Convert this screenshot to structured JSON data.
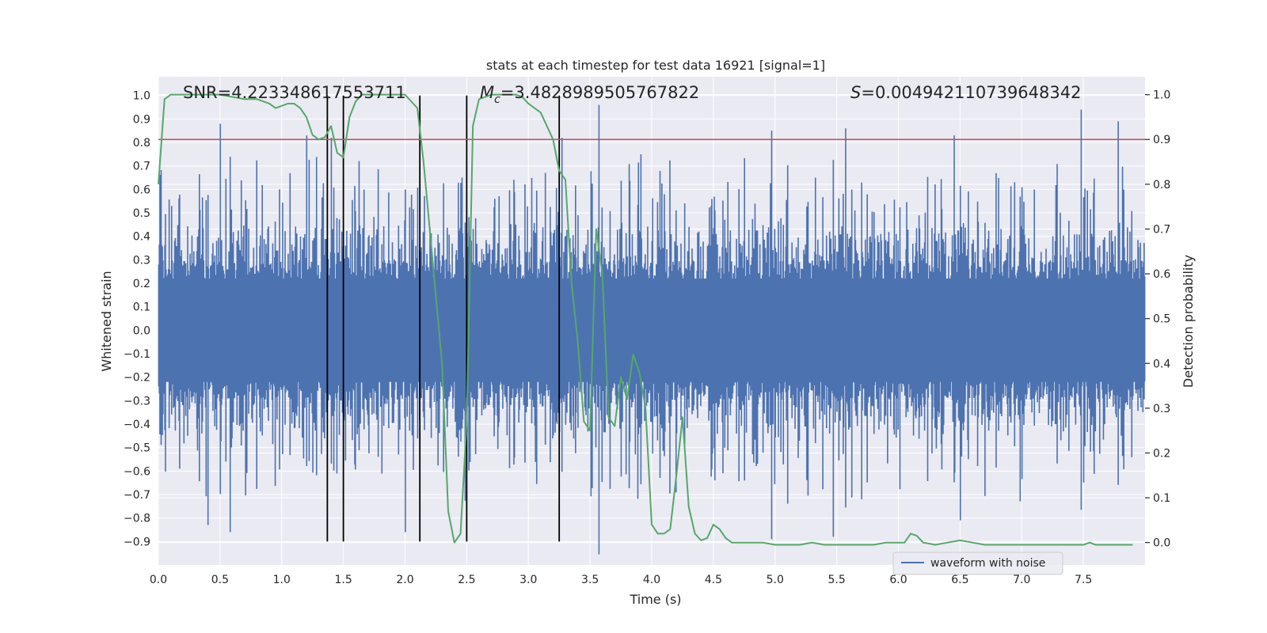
{
  "chart_data": {
    "type": "line",
    "title": "stats at each timestep for test data 16921 [signal=1]",
    "xlabel": "Time (s)",
    "ylabel_left": "Whitened strain",
    "ylabel_right": "Detection probability",
    "xlim": [
      0.0,
      8.0
    ],
    "ylim_left": [
      -1.0,
      1.08
    ],
    "ylim_right": [
      -0.05,
      1.04
    ],
    "x_ticks": [
      0.0,
      0.5,
      1.0,
      1.5,
      2.0,
      2.5,
      3.0,
      3.5,
      4.0,
      4.5,
      5.0,
      5.5,
      6.0,
      6.5,
      7.0,
      7.5
    ],
    "x_tick_labels": [
      "0.0",
      "0.5",
      "1.0",
      "1.5",
      "2.0",
      "2.5",
      "3.0",
      "3.5",
      "4.0",
      "4.5",
      "5.0",
      "5.5",
      "6.0",
      "6.5",
      "7.0",
      "7.5"
    ],
    "y_left_ticks": [
      -0.9,
      -0.8,
      -0.7,
      -0.6,
      -0.5,
      -0.4,
      -0.3,
      -0.2,
      -0.1,
      0.0,
      0.1,
      0.2,
      0.3,
      0.4,
      0.5,
      0.6,
      0.7,
      0.8,
      0.9,
      1.0
    ],
    "y_left_tick_labels": [
      "−0.9",
      "−0.8",
      "−0.7",
      "−0.6",
      "−0.5",
      "−0.4",
      "−0.3",
      "−0.2",
      "−0.1",
      "0.0",
      "0.1",
      "0.2",
      "0.3",
      "0.4",
      "0.5",
      "0.6",
      "0.7",
      "0.8",
      "0.9",
      "1.0"
    ],
    "y_right_ticks": [
      0.0,
      0.1,
      0.2,
      0.3,
      0.4,
      0.5,
      0.6,
      0.7,
      0.8,
      0.9,
      1.0
    ],
    "y_right_tick_labels": [
      "0.0",
      "0.1",
      "0.2",
      "0.3",
      "0.4",
      "0.5",
      "0.6",
      "0.7",
      "0.8",
      "0.9",
      "1.0"
    ],
    "annotations": {
      "snr": "SNR=4.223348617553711",
      "mc_symbol": "M",
      "mc_sub": "c",
      "mc_value": "=3.4828989505767822",
      "s_symbol": "S",
      "s_value": "=0.004942110739648342"
    },
    "threshold": {
      "axis": "right",
      "value": 0.9,
      "color": "#c44e52"
    },
    "vertical_markers": {
      "x": [
        1.37,
        1.5,
        2.12,
        2.5,
        3.25
      ],
      "ymin": -0.9,
      "ymax": 1.0,
      "color": "#000000"
    },
    "legend": {
      "position": "lower-right",
      "entries": [
        {
          "label": "waveform with noise",
          "color": "#4c72b0"
        }
      ]
    },
    "series": [
      {
        "name": "waveform with noise",
        "axis": "left",
        "color": "#4c72b0",
        "style": "noise",
        "samples": 1600,
        "core_amplitude": 0.22,
        "peak_max": [
          0.98,
          -0.9
        ],
        "peaks": [
          {
            "x": 0.5,
            "y": 0.88
          },
          {
            "x": 3.57,
            "y": 0.96
          },
          {
            "x": 5.57,
            "y": 0.86
          },
          {
            "x": 6.45,
            "y": 0.83
          },
          {
            "x": 7.48,
            "y": 0.94
          },
          {
            "x": 7.78,
            "y": 0.89
          },
          {
            "x": 0.4,
            "y": -0.83
          },
          {
            "x": 0.58,
            "y": -0.86
          },
          {
            "x": 2.0,
            "y": -0.86
          },
          {
            "x": 4.97,
            "y": -0.89
          },
          {
            "x": 5.47,
            "y": -0.88
          },
          {
            "x": 6.5,
            "y": -0.81
          },
          {
            "x": 1.2,
            "y": 0.83
          },
          {
            "x": 1.4,
            "y": 0.82
          },
          {
            "x": 3.27,
            "y": 0.82
          }
        ]
      },
      {
        "name": "",
        "axis": "right",
        "color": "#55a868",
        "style": "line",
        "x": [
          0.0,
          0.05,
          0.1,
          0.2,
          0.3,
          0.5,
          0.7,
          0.8,
          0.9,
          0.95,
          1.0,
          1.05,
          1.1,
          1.15,
          1.2,
          1.25,
          1.3,
          1.35,
          1.4,
          1.45,
          1.5,
          1.55,
          1.6,
          1.65,
          1.7,
          1.75,
          1.8,
          1.9,
          2.0,
          2.05,
          2.1,
          2.15,
          2.2,
          2.25,
          2.3,
          2.35,
          2.4,
          2.45,
          2.5,
          2.55,
          2.6,
          2.7,
          2.8,
          2.9,
          2.95,
          3.0,
          3.05,
          3.1,
          3.15,
          3.2,
          3.25,
          3.3,
          3.35,
          3.4,
          3.45,
          3.5,
          3.55,
          3.6,
          3.65,
          3.7,
          3.75,
          3.8,
          3.85,
          3.9,
          3.95,
          4.0,
          4.05,
          4.1,
          4.15,
          4.2,
          4.25,
          4.3,
          4.35,
          4.4,
          4.45,
          4.5,
          4.55,
          4.6,
          4.65,
          4.7,
          4.8,
          4.9,
          5.0,
          5.1,
          5.2,
          5.3,
          5.4,
          5.5,
          5.6,
          5.7,
          5.8,
          5.9,
          6.0,
          6.05,
          6.1,
          6.15,
          6.2,
          6.3,
          6.4,
          6.5,
          6.6,
          6.7,
          6.8,
          6.9,
          7.0,
          7.2,
          7.4,
          7.5,
          7.55,
          7.6,
          7.7,
          7.8,
          7.9
        ],
        "y": [
          0.8,
          0.99,
          1.0,
          1.0,
          1.0,
          1.0,
          0.99,
          0.99,
          0.98,
          0.97,
          0.975,
          0.98,
          0.98,
          0.97,
          0.95,
          0.91,
          0.9,
          0.905,
          0.93,
          0.87,
          0.86,
          0.95,
          0.985,
          1.0,
          1.0,
          1.0,
          1.0,
          1.0,
          1.0,
          0.985,
          0.97,
          0.85,
          0.7,
          0.55,
          0.4,
          0.07,
          0.0,
          0.02,
          0.27,
          0.93,
          0.99,
          1.0,
          1.0,
          1.0,
          0.995,
          0.98,
          0.97,
          0.96,
          0.93,
          0.9,
          0.83,
          0.81,
          0.58,
          0.45,
          0.27,
          0.25,
          0.7,
          0.6,
          0.28,
          0.26,
          0.37,
          0.32,
          0.42,
          0.38,
          0.3,
          0.04,
          0.02,
          0.02,
          0.03,
          0.15,
          0.28,
          0.08,
          0.02,
          0.005,
          0.01,
          0.04,
          0.03,
          0.01,
          0.0,
          0.0,
          0.0,
          0.0,
          -0.005,
          -0.005,
          -0.005,
          0.0,
          -0.005,
          -0.005,
          -0.005,
          -0.005,
          -0.005,
          0.0,
          0.0,
          0.0,
          0.02,
          0.015,
          0.0,
          -0.005,
          0.0,
          0.005,
          0.0,
          -0.005,
          -0.005,
          -0.005,
          -0.005,
          -0.005,
          -0.005,
          -0.005,
          0.0,
          -0.005,
          -0.005,
          -0.005,
          -0.005
        ]
      }
    ]
  }
}
